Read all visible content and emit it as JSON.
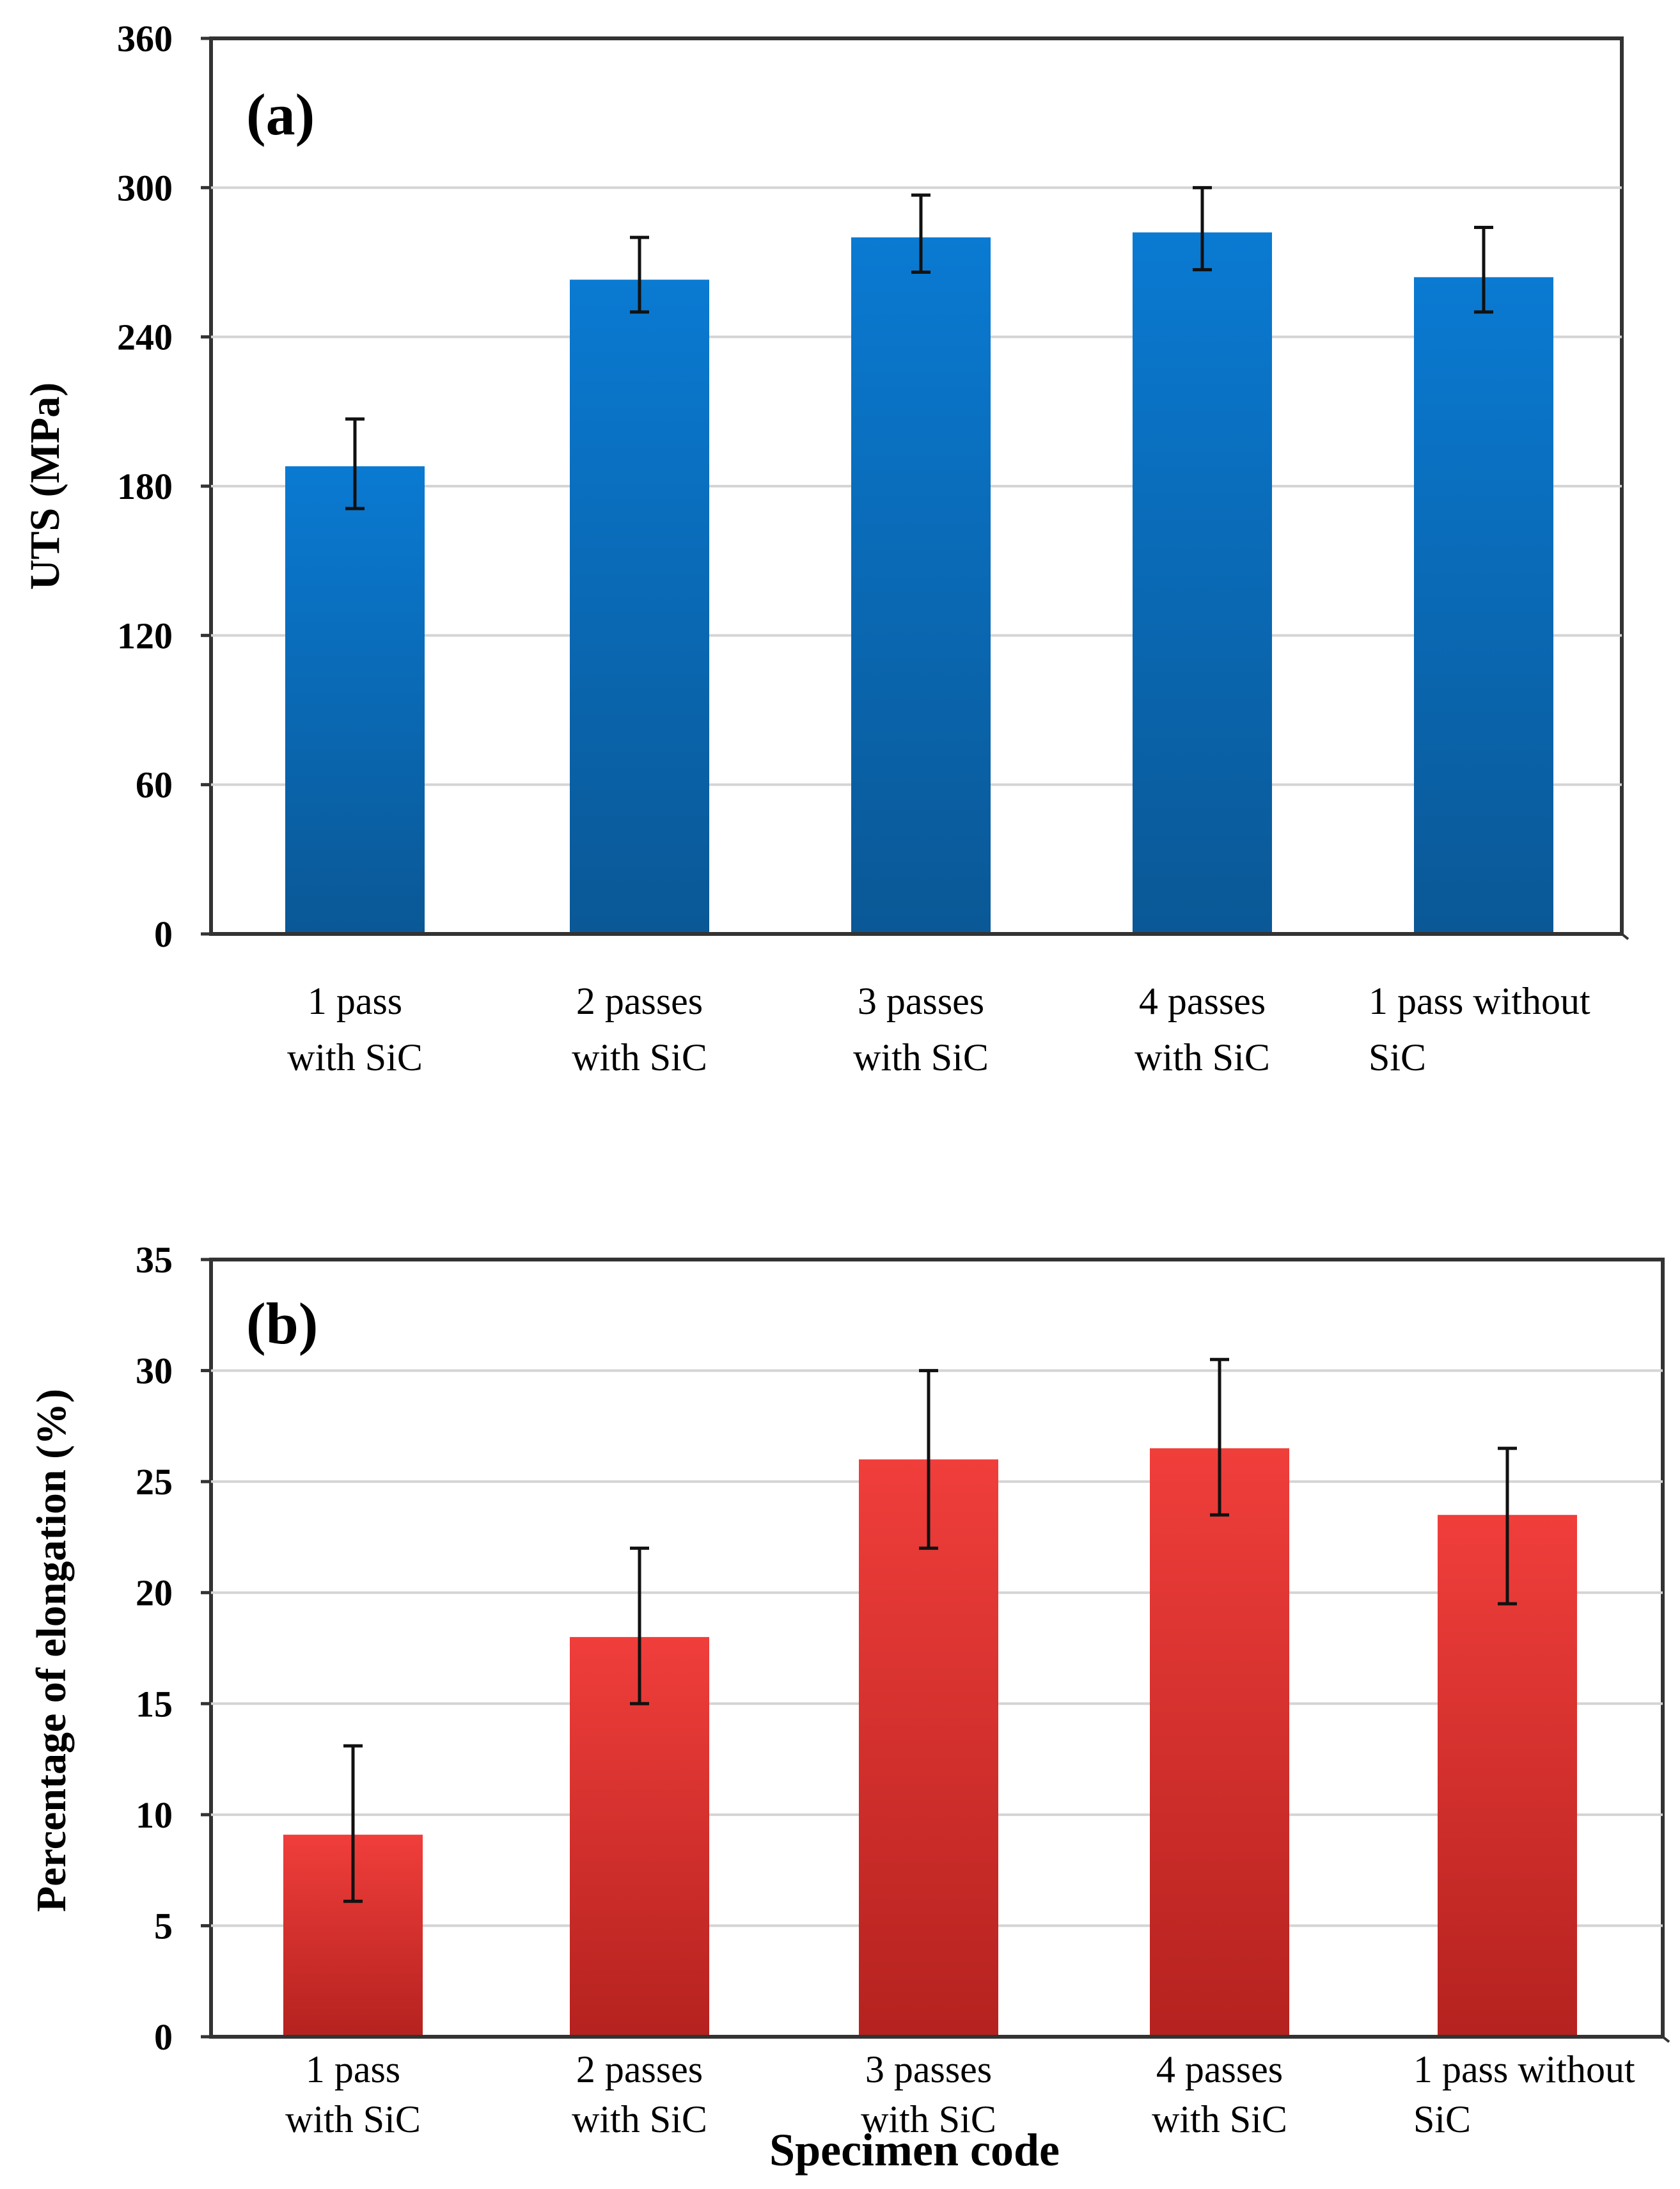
{
  "chart_data": [
    {
      "type": "bar",
      "panel_label": "(a)",
      "title": "",
      "xlabel": "",
      "ylabel": "UTS (MPa)",
      "ylim": [
        0,
        360
      ],
      "yticks": [
        0,
        60,
        120,
        180,
        240,
        300,
        360
      ],
      "grid": true,
      "color": "#0a74c9",
      "color_dark": "#0a5a99",
      "categories": [
        [
          "1 pass",
          "with SiC"
        ],
        [
          "2 passes",
          "with SiC"
        ],
        [
          "3 passes",
          "with SiC"
        ],
        [
          "4 passes",
          "with SiC"
        ],
        [
          "1 pass without",
          "SiC"
        ]
      ],
      "values": [
        188,
        263,
        280,
        282,
        264
      ],
      "err_upper": [
        207,
        280,
        297,
        300,
        284
      ],
      "err_lower": [
        171,
        250,
        266,
        267,
        250
      ]
    },
    {
      "type": "bar",
      "panel_label": "(b)",
      "title": "",
      "xlabel": "Specimen code",
      "ylabel": "Percentage of elongation (%)",
      "ylim": [
        0,
        35
      ],
      "yticks": [
        0,
        5,
        10,
        15,
        20,
        25,
        30,
        35
      ],
      "grid": true,
      "color": "#ee3d3a",
      "color_dark": "#b82420",
      "categories": [
        [
          "1 pass",
          "with SiC"
        ],
        [
          "2 passes",
          "with SiC"
        ],
        [
          "3 passes",
          "with SiC"
        ],
        [
          "4 passes",
          "with SiC"
        ],
        [
          "1 pass without",
          "SiC"
        ]
      ],
      "values": [
        9.1,
        18,
        26,
        26.5,
        23.5
      ],
      "err_upper": [
        13.1,
        22,
        30,
        30.5,
        26.5
      ],
      "err_lower": [
        6.1,
        15,
        22,
        23.5,
        19.5
      ]
    }
  ]
}
